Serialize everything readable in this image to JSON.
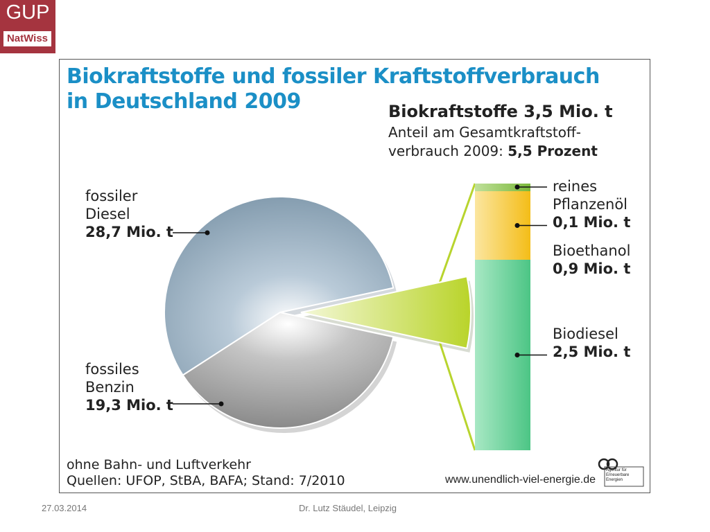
{
  "logo": {
    "top": "GUP",
    "bottom": "NatWiss"
  },
  "footer": {
    "date": "27.03.2014",
    "author": "Dr. Lutz Stäudel, Leipzig"
  },
  "chart_data": {
    "type": "pie",
    "title": "Biokraftstoffe und fossiler Kraftstoffverbrauch in Deutschland 2009",
    "title_lines": [
      "Biokraftstoffe und fossiler Kraftstoffverbrauch",
      "in Deutschland 2009"
    ],
    "unit": "Mio. t",
    "slices": [
      {
        "name": "fossiler Diesel",
        "name_lines": [
          "fossiler",
          "Diesel"
        ],
        "value": 28.7,
        "label": "28,7 Mio. t",
        "color": "#8fa9bd"
      },
      {
        "name": "fossiles Benzin",
        "name_lines": [
          "fossiles",
          "Benzin"
        ],
        "value": 19.3,
        "label": "19,3 Mio. t",
        "color": "#9a9a9a"
      },
      {
        "name": "Biokraftstoffe",
        "value": 3.5,
        "label": "3,5 Mio. t",
        "color": "#c7dd3c",
        "exploded": true
      }
    ],
    "biofuel_summary": {
      "total_label": "Biokraftstoffe 3,5 Mio. t",
      "share_line1": "Anteil am  Gesamtkraftstoff-",
      "share_line2": "verbrauch 2009: ",
      "share_value": "5,5 Prozent",
      "share_percent": 5.5
    },
    "stacked_bar": {
      "segments": [
        {
          "name": "Biodiesel",
          "name_lines": [
            "Biodiesel"
          ],
          "value": 2.5,
          "label": "2,5 Mio. t",
          "color": "#52c98a"
        },
        {
          "name": "Bioethanol",
          "name_lines": [
            "Bioethanol"
          ],
          "value": 0.9,
          "label": "0,9 Mio. t",
          "color": "#f7c531"
        },
        {
          "name": "reines Pflanzenöl",
          "name_lines": [
            "reines",
            "Pflanzenöl"
          ],
          "value": 0.1,
          "label": "0,1 Mio. t",
          "color": "#8fc43c"
        }
      ]
    },
    "notes": [
      "ohne Bahn- und Luftverkehr",
      "Quellen: UFOP, StBA, BAFA; Stand: 7/2010"
    ],
    "source_url": "www.unendlich-viel-energie.de",
    "agency": [
      "Agentur für",
      "Erneuerbare",
      "Energien"
    ]
  }
}
